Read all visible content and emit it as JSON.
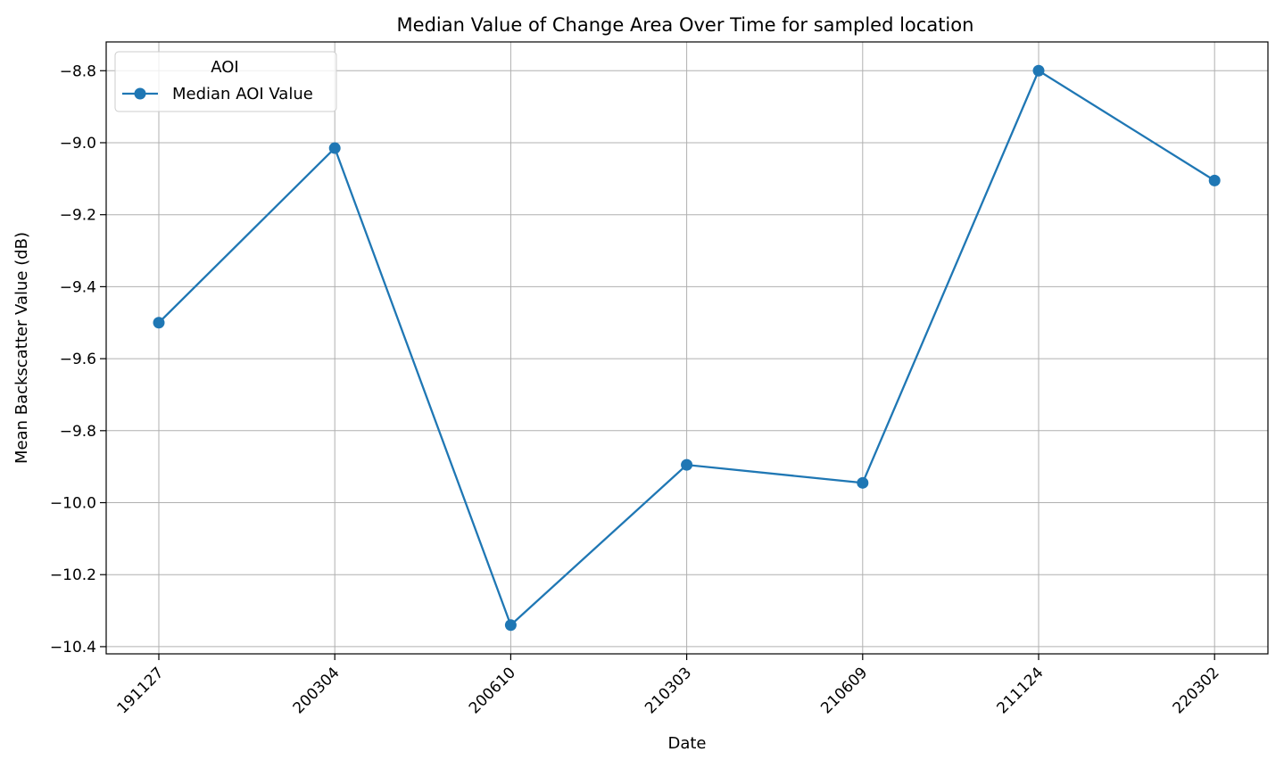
{
  "chart_data": {
    "type": "line",
    "title": "Median Value of Change Area Over Time for sampled location",
    "xlabel": "Date",
    "ylabel": "Mean Backscatter Value (dB)",
    "categories": [
      "191127",
      "200304",
      "200610",
      "210303",
      "210609",
      "211124",
      "220302"
    ],
    "series": [
      {
        "name": "Median AOI Value",
        "values": [
          -9.5,
          -9.015,
          -10.34,
          -9.895,
          -9.945,
          -8.8,
          -9.105
        ],
        "color": "#1f77b4",
        "marker": "circle"
      }
    ],
    "ylim": [
      -10.42,
      -8.72
    ],
    "yticks": [
      -8.8,
      -9.0,
      -9.2,
      -9.4,
      -9.6,
      -9.8,
      -10.0,
      -10.2,
      -10.4
    ],
    "ytick_labels": [
      "−8.8",
      "−9.0",
      "−9.2",
      "−9.4",
      "−9.6",
      "−9.8",
      "−10.0",
      "−10.2",
      "−10.4"
    ],
    "grid": true,
    "legend": {
      "title": "AOI",
      "placement": "top-left"
    }
  }
}
